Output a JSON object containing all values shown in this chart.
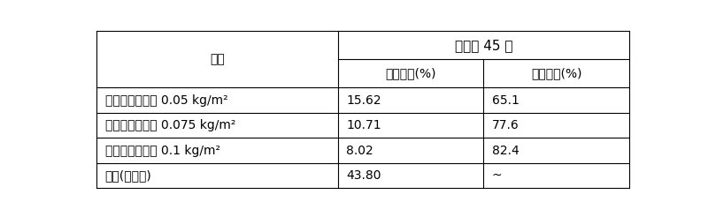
{
  "title_merged": "移栽后 45 天",
  "col_header_1": "处理",
  "col_header_2": "病情指数(%)",
  "col_header_3": "防治效果(%)",
  "rows": [
    [
      "金银花残渣备料 0.05 kg/m²",
      "15.62",
      "65.1"
    ],
    [
      "金银花残渣备料 0.075 kg/m²",
      "10.71",
      "77.6"
    ],
    [
      "金银花残渣备料 0.1 kg/m²",
      "8.02",
      "82.4"
    ],
    [
      "对照(不施用)",
      "43.80",
      "~"
    ]
  ],
  "bg_color": "#ffffff",
  "text_color": "#000000",
  "line_color": "#000000",
  "font_size": 10,
  "fig_width": 8.0,
  "fig_height": 2.46
}
